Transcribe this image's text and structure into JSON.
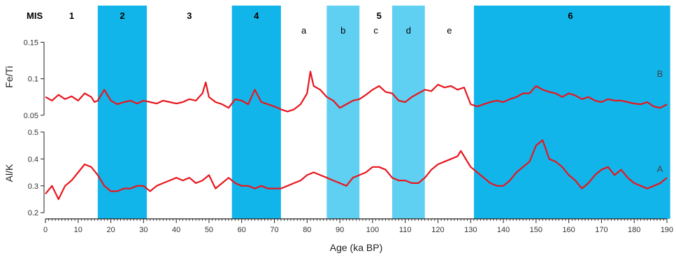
{
  "chart_data": {
    "type": "line",
    "xlabel": "Age (ka BP)",
    "xlim": [
      0,
      190
    ],
    "x_ticks": [
      "0",
      "10",
      "20",
      "30",
      "40",
      "50",
      "60",
      "70",
      "80",
      "90",
      "100",
      "110",
      "120",
      "130",
      "140",
      "150",
      "160",
      "170",
      "180",
      "190"
    ],
    "stage_header": "MIS",
    "stages": [
      {
        "label": "1",
        "range": [
          0,
          16
        ],
        "shaded": false,
        "bold": true
      },
      {
        "label": "2",
        "range": [
          16,
          31
        ],
        "shaded": true,
        "bold": true
      },
      {
        "label": "3",
        "range": [
          31,
          57
        ],
        "shaded": false,
        "bold": true
      },
      {
        "label": "4",
        "range": [
          57,
          72
        ],
        "shaded": true,
        "bold": true
      },
      {
        "label": "a",
        "range": [
          72,
          86
        ],
        "shaded": false,
        "bold": false
      },
      {
        "label": "b",
        "range": [
          86,
          96
        ],
        "shaded": true,
        "light": true,
        "bold": false
      },
      {
        "label": "c",
        "range": [
          96,
          106
        ],
        "shaded": false,
        "bold": false
      },
      {
        "label": "d",
        "range": [
          106,
          116
        ],
        "shaded": true,
        "light": true,
        "bold": false
      },
      {
        "label": "e",
        "range": [
          116,
          131
        ],
        "shaded": false,
        "bold": false
      },
      {
        "label": "6",
        "range": [
          131,
          191
        ],
        "shaded": true,
        "bold": true
      }
    ],
    "group_label": {
      "label": "5",
      "x": 102,
      "bold": true
    },
    "colors": {
      "band": "#12b5ea",
      "band_light": "#5fd0f2",
      "smoothed": "#e8161d",
      "raw": "#9a9a9a"
    },
    "panels": [
      {
        "id": "B",
        "ylabel": "Fe/Ti",
        "ylim": [
          0.045,
          0.16
        ],
        "y_ticks": [
          0.05,
          0.1,
          0.15
        ],
        "y_tick_labels": [
          "0.05",
          "0.1",
          "0.15"
        ],
        "series": [
          {
            "role": "raw",
            "x": [],
            "y": []
          },
          {
            "role": "smoothed",
            "x": [
              0,
              2,
              4,
              6,
              8,
              10,
              12,
              14,
              15,
              16,
              18,
              20,
              22,
              24,
              26,
              28,
              30,
              32,
              34,
              36,
              38,
              40,
              42,
              44,
              46,
              48,
              49,
              50,
              52,
              54,
              56,
              58,
              60,
              62,
              64,
              66,
              68,
              70,
              72,
              74,
              76,
              78,
              80,
              81,
              82,
              84,
              86,
              88,
              90,
              92,
              94,
              96,
              98,
              100,
              102,
              104,
              106,
              108,
              110,
              112,
              114,
              116,
              118,
              120,
              122,
              124,
              126,
              128,
              130,
              132,
              134,
              136,
              138,
              140,
              142,
              144,
              146,
              148,
              150,
              152,
              154,
              156,
              158,
              160,
              162,
              164,
              166,
              168,
              170,
              172,
              174,
              176,
              178,
              180,
              182,
              184,
              186,
              188,
              190
            ],
            "y": [
              0.075,
              0.07,
              0.078,
              0.072,
              0.076,
              0.07,
              0.08,
              0.075,
              0.068,
              0.07,
              0.085,
              0.07,
              0.065,
              0.068,
              0.07,
              0.066,
              0.07,
              0.068,
              0.066,
              0.07,
              0.068,
              0.066,
              0.068,
              0.072,
              0.07,
              0.08,
              0.095,
              0.075,
              0.068,
              0.065,
              0.06,
              0.072,
              0.07,
              0.065,
              0.085,
              0.068,
              0.065,
              0.062,
              0.058,
              0.055,
              0.058,
              0.065,
              0.08,
              0.11,
              0.09,
              0.085,
              0.075,
              0.07,
              0.06,
              0.065,
              0.07,
              0.072,
              0.078,
              0.085,
              0.09,
              0.082,
              0.08,
              0.07,
              0.068,
              0.075,
              0.08,
              0.085,
              0.083,
              0.092,
              0.088,
              0.09,
              0.085,
              0.088,
              0.065,
              0.062,
              0.065,
              0.068,
              0.07,
              0.068,
              0.072,
              0.075,
              0.08,
              0.08,
              0.09,
              0.085,
              0.082,
              0.08,
              0.075,
              0.08,
              0.077,
              0.072,
              0.075,
              0.07,
              0.068,
              0.072,
              0.07,
              0.07,
              0.068,
              0.066,
              0.065,
              0.068,
              0.062,
              0.06,
              0.065
            ]
          }
        ]
      },
      {
        "id": "A",
        "ylabel": "Al/K",
        "ylim": [
          0.185,
          0.51
        ],
        "y_ticks": [
          0.2,
          0.3,
          0.4,
          0.5
        ],
        "y_tick_labels": [
          "0.2",
          "0.3",
          "0.4",
          "0.5"
        ],
        "series": [
          {
            "role": "raw",
            "x": [],
            "y": []
          },
          {
            "role": "smoothed",
            "x": [
              0,
              2,
              4,
              6,
              8,
              10,
              12,
              14,
              16,
              18,
              20,
              22,
              24,
              26,
              28,
              30,
              32,
              34,
              36,
              38,
              40,
              42,
              44,
              46,
              48,
              50,
              52,
              54,
              56,
              58,
              60,
              62,
              64,
              66,
              68,
              70,
              72,
              74,
              76,
              78,
              80,
              82,
              84,
              86,
              88,
              90,
              92,
              94,
              96,
              98,
              100,
              102,
              104,
              106,
              108,
              110,
              112,
              114,
              116,
              118,
              120,
              122,
              124,
              126,
              127,
              128,
              130,
              132,
              134,
              136,
              138,
              140,
              142,
              144,
              146,
              148,
              150,
              152,
              154,
              156,
              158,
              160,
              162,
              164,
              166,
              168,
              170,
              172,
              174,
              176,
              178,
              180,
              182,
              184,
              186,
              188,
              190
            ],
            "y": [
              0.27,
              0.3,
              0.25,
              0.3,
              0.32,
              0.35,
              0.38,
              0.37,
              0.34,
              0.3,
              0.28,
              0.28,
              0.29,
              0.29,
              0.3,
              0.3,
              0.28,
              0.3,
              0.31,
              0.32,
              0.33,
              0.32,
              0.33,
              0.31,
              0.32,
              0.34,
              0.29,
              0.31,
              0.33,
              0.31,
              0.3,
              0.3,
              0.29,
              0.3,
              0.29,
              0.29,
              0.29,
              0.3,
              0.31,
              0.32,
              0.34,
              0.35,
              0.34,
              0.33,
              0.32,
              0.31,
              0.3,
              0.33,
              0.34,
              0.35,
              0.37,
              0.37,
              0.36,
              0.33,
              0.32,
              0.32,
              0.31,
              0.31,
              0.33,
              0.36,
              0.38,
              0.39,
              0.4,
              0.41,
              0.43,
              0.41,
              0.37,
              0.35,
              0.33,
              0.31,
              0.3,
              0.3,
              0.32,
              0.35,
              0.37,
              0.39,
              0.45,
              0.47,
              0.4,
              0.39,
              0.37,
              0.34,
              0.32,
              0.29,
              0.31,
              0.34,
              0.36,
              0.37,
              0.34,
              0.36,
              0.33,
              0.31,
              0.3,
              0.29,
              0.3,
              0.31,
              0.33
            ]
          }
        ]
      }
    ]
  }
}
